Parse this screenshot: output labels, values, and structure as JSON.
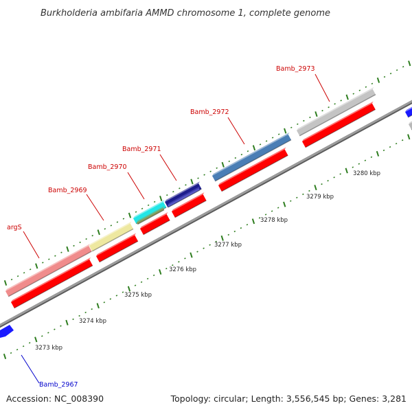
{
  "title": "Burkholderia ambifaria AMMD chromosome 1, complete genome",
  "footer": {
    "accession": "Accession: NC_008390",
    "topology": "Topology: circular; Length: 3,556,545 bp; Genes: 3,281"
  },
  "colors": {
    "backbone": "#8a8a8a",
    "tick": "#2e7d1f",
    "label_top": "#cc0000",
    "label_bottom": "#0000cc",
    "cds_red": "#ff0000",
    "cds_blue": "#1a1aff"
  },
  "scale_labels": [
    "3273 kbp",
    "3274 kbp",
    "3275 kbp",
    "3276 kbp",
    "3277 kbp",
    "3278 kbp",
    "3279 kbp",
    "3280 kbp"
  ],
  "genes": [
    {
      "name": "argS",
      "color": "#f08c8c",
      "strand": "+"
    },
    {
      "name": "Bamb_2969",
      "color": "#eee8a0",
      "strand": "+"
    },
    {
      "name": "Bamb_2970",
      "color": "#22e6e6",
      "strand": "+"
    },
    {
      "name": "Bamb_2971",
      "color": "#1c1c8c",
      "strand": "+"
    },
    {
      "name": "Bamb_2972",
      "color": "#4a7eb5",
      "strand": "+"
    },
    {
      "name": "Bamb_2973",
      "color": "#c4c4c4",
      "strand": "+"
    },
    {
      "name": "Bamb_2967",
      "color": "#1a1aff",
      "strand": "-"
    }
  ]
}
